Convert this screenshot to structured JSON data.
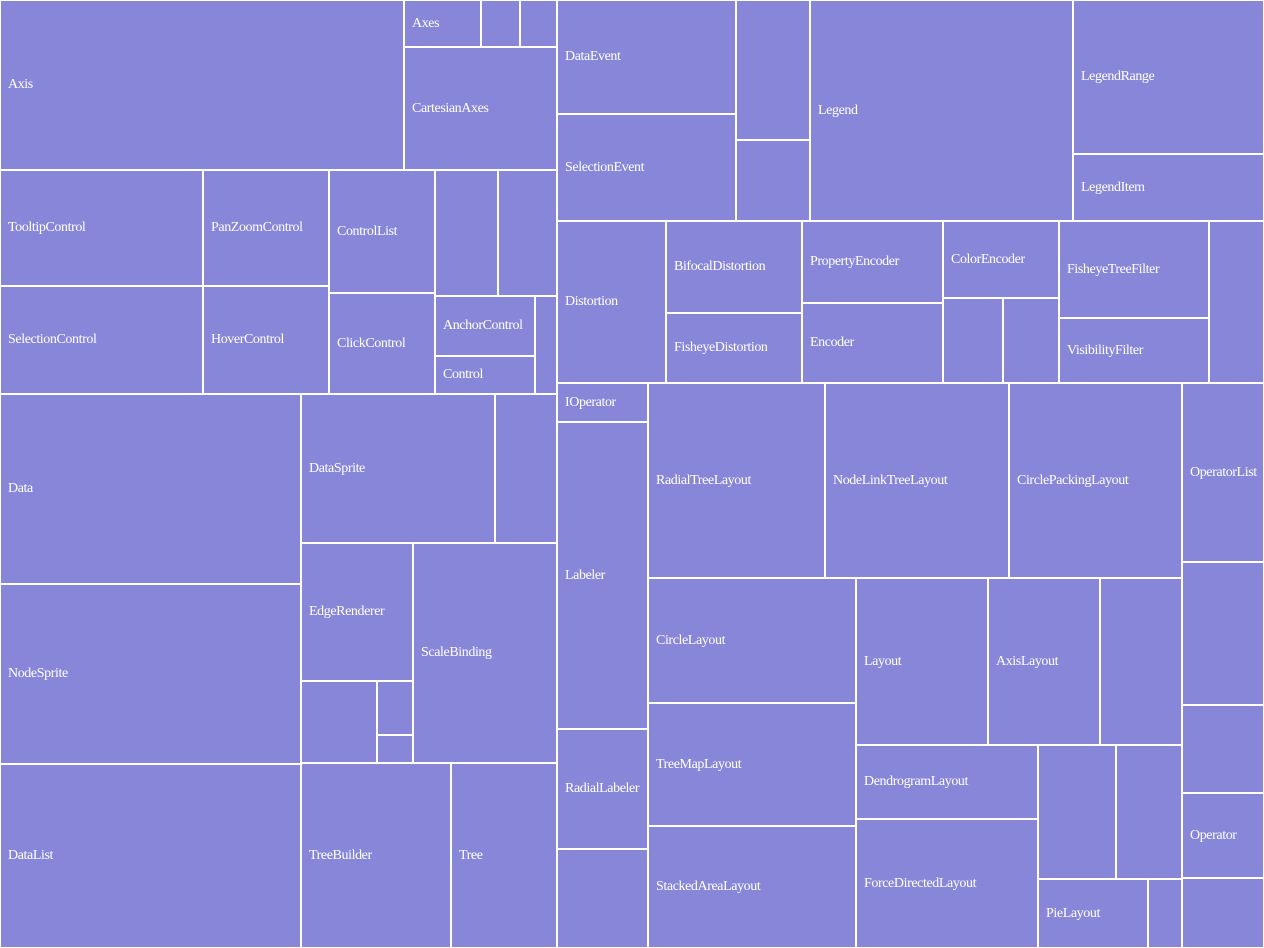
{
  "chart_data": {
    "type": "treemap",
    "fill_color": "#8886d8",
    "border_color": "#ffffff",
    "label_color": "#ffffff",
    "nodes": [
      {
        "name": "Axis"
      },
      {
        "name": "Axes"
      },
      {
        "name": ""
      },
      {
        "name": ""
      },
      {
        "name": "CartesianAxes"
      },
      {
        "name": "TooltipControl"
      },
      {
        "name": "PanZoomControl"
      },
      {
        "name": "ControlList"
      },
      {
        "name": ""
      },
      {
        "name": ""
      },
      {
        "name": "SelectionControl"
      },
      {
        "name": "HoverControl"
      },
      {
        "name": "ClickControl"
      },
      {
        "name": "AnchorControl"
      },
      {
        "name": ""
      },
      {
        "name": "Control"
      },
      {
        "name": "Data"
      },
      {
        "name": "DataSprite"
      },
      {
        "name": ""
      },
      {
        "name": "NodeSprite"
      },
      {
        "name": "EdgeRenderer"
      },
      {
        "name": "ScaleBinding"
      },
      {
        "name": ""
      },
      {
        "name": ""
      },
      {
        "name": ""
      },
      {
        "name": "DataList"
      },
      {
        "name": "TreeBuilder"
      },
      {
        "name": "Tree"
      },
      {
        "name": "DataEvent"
      },
      {
        "name": ""
      },
      {
        "name": "SelectionEvent"
      },
      {
        "name": ""
      },
      {
        "name": "Legend"
      },
      {
        "name": "LegendRange"
      },
      {
        "name": "LegendItem"
      },
      {
        "name": "Distortion"
      },
      {
        "name": "BifocalDistortion"
      },
      {
        "name": "FisheyeDistortion"
      },
      {
        "name": "PropertyEncoder"
      },
      {
        "name": "Encoder"
      },
      {
        "name": "ColorEncoder"
      },
      {
        "name": ""
      },
      {
        "name": ""
      },
      {
        "name": "FisheyeTreeFilter"
      },
      {
        "name": "VisibilityFilter"
      },
      {
        "name": ""
      },
      {
        "name": "IOperator"
      },
      {
        "name": "Labeler"
      },
      {
        "name": "RadialLabeler"
      },
      {
        "name": ""
      },
      {
        "name": "RadialTreeLayout"
      },
      {
        "name": "NodeLinkTreeLayout"
      },
      {
        "name": "CirclePackingLayout"
      },
      {
        "name": "OperatorList"
      },
      {
        "name": "CircleLayout"
      },
      {
        "name": "Layout"
      },
      {
        "name": "AxisLayout"
      },
      {
        "name": ""
      },
      {
        "name": ""
      },
      {
        "name": "TreeMapLayout"
      },
      {
        "name": "DendrogramLayout"
      },
      {
        "name": ""
      },
      {
        "name": ""
      },
      {
        "name": ""
      },
      {
        "name": "Operator"
      },
      {
        "name": "StackedAreaLayout"
      },
      {
        "name": "ForceDirectedLayout"
      },
      {
        "name": "PieLayout"
      },
      {
        "name": ""
      },
      {
        "name": ""
      }
    ]
  }
}
